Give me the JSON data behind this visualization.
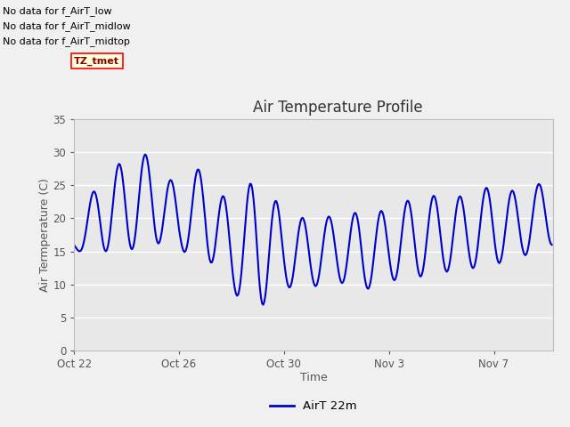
{
  "title": "Air Temperature Profile",
  "xlabel": "Time",
  "ylabel": "Air Termperature (C)",
  "ylim": [
    0,
    35
  ],
  "yticks": [
    0,
    5,
    10,
    15,
    20,
    25,
    30,
    35
  ],
  "line_color": "#0000cc",
  "line_width": 1.5,
  "legend_label": "AirT 22m",
  "annotations": [
    "No data for f_AirT_low",
    "No data for f_AirT_midlow",
    "No data for f_AirT_midtop"
  ],
  "tz_label": "TZ_tmet",
  "fig_bg_color": "#f0f0f0",
  "plot_bg_color": "#e8e8e8",
  "tick_dates": [
    "Oct 22",
    "Oct 26",
    "Oct 30",
    "Nov 3",
    "Nov 7"
  ]
}
